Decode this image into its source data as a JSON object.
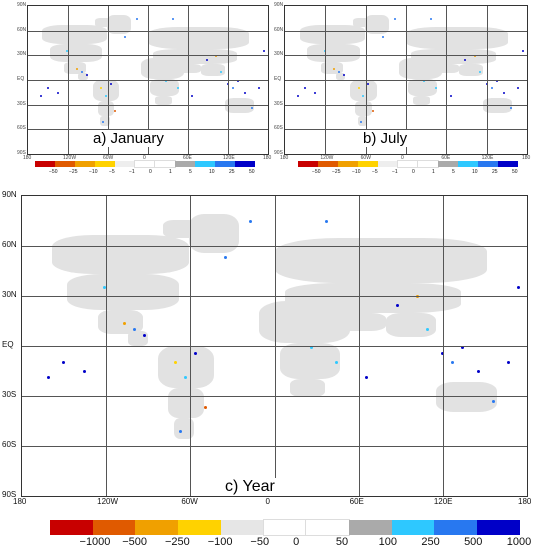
{
  "panels": {
    "january": {
      "title": "a) January",
      "lat_ticks": [
        "90N",
        "60N",
        "30N",
        "EQ",
        "30S",
        "60S",
        "90S"
      ],
      "lon_ticks": [
        "180",
        "120W",
        "60W",
        "0",
        "60E",
        "120E",
        "180"
      ]
    },
    "july": {
      "title": "b) July",
      "lat_ticks": [
        "90N",
        "60N",
        "30N",
        "EQ",
        "30S",
        "60S",
        "90S"
      ],
      "lon_ticks": [
        "180",
        "120W",
        "60W",
        "0",
        "60E",
        "120E",
        "180"
      ]
    },
    "year": {
      "title": "c) Year",
      "lat_ticks": [
        "90N",
        "60N",
        "30N",
        "EQ",
        "30S",
        "60S",
        "90S"
      ],
      "lon_ticks": [
        "180",
        "120W",
        "60W",
        "0",
        "60E",
        "120E",
        "180"
      ]
    }
  },
  "colorbars": {
    "monthly": {
      "labels": [
        "−50",
        "−25",
        "−10",
        "−5",
        "−1",
        "0",
        "1",
        "5",
        "10",
        "25",
        "50"
      ],
      "colors": [
        "#c80000",
        "#e05a00",
        "#f0a000",
        "#ffd200",
        "#eeeeee",
        "#ffffff",
        "#ffffff",
        "#aaaaaa",
        "#2ec8ff",
        "#2878f0",
        "#0000c8"
      ]
    },
    "annual": {
      "labels": [
        "−1000",
        "−500",
        "−250",
        "−100",
        "−50",
        "0",
        "50",
        "100",
        "250",
        "500",
        "1000"
      ],
      "colors": [
        "#c80000",
        "#e05a00",
        "#f0a000",
        "#ffd200",
        "#e6e6e6",
        "#ffffff",
        "#ffffff",
        "#aaaaaa",
        "#2ec8ff",
        "#2878f0",
        "#0000c8"
      ]
    }
  }
}
